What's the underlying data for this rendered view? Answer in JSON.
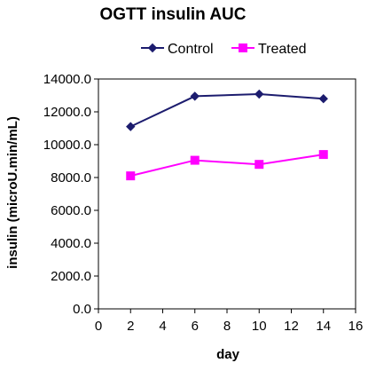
{
  "chart_data": {
    "type": "line",
    "title": "OGTT insulin AUC",
    "xlabel": "day",
    "ylabel": "insulin (microU.min/mL)",
    "xlim": [
      0,
      16
    ],
    "ylim": [
      0,
      14000
    ],
    "xticks": [
      0,
      2,
      4,
      6,
      8,
      10,
      12,
      14,
      16
    ],
    "yticks": [
      0,
      2000,
      4000,
      6000,
      8000,
      10000,
      12000,
      14000
    ],
    "ytick_labels": [
      "0.0",
      "2000.0",
      "4000.0",
      "6000.0",
      "8000.0",
      "10000.0",
      "12000.0",
      "14000.0"
    ],
    "grid": false,
    "legend_position": "top-center",
    "series": [
      {
        "name": "Control",
        "color": "#1c1c6e",
        "marker": "diamond",
        "x": [
          2,
          6,
          10,
          14
        ],
        "y": [
          11100,
          12950,
          13080,
          12800
        ]
      },
      {
        "name": "Treated",
        "color": "#ff00ff",
        "marker": "square",
        "x": [
          2,
          6,
          10,
          14
        ],
        "y": [
          8100,
          9050,
          8800,
          9400
        ]
      }
    ]
  }
}
